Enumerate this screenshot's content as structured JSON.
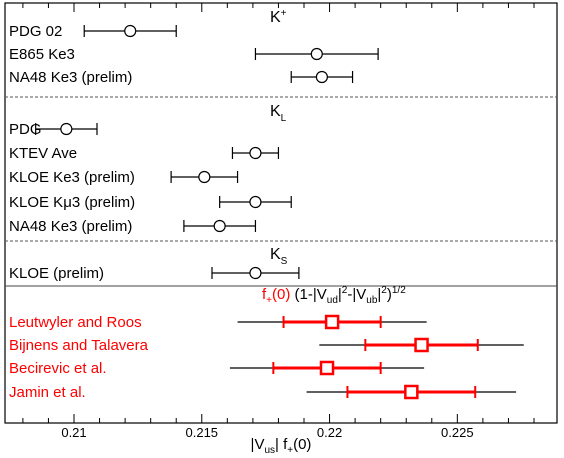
{
  "chart_data": {
    "type": "scatter",
    "xlabel": "|V_us| f_+(0)",
    "xlim": [
      0.2073,
      0.2289
    ],
    "x_ticks": [
      0.21,
      0.215,
      0.22,
      0.225
    ],
    "x_tick_labels": [
      "0.21",
      "0.215",
      "0.22",
      "0.225"
    ],
    "grid": false,
    "sections": [
      {
        "name": "K⁺",
        "label_main": "K",
        "label_sup": "+",
        "label_sub": "",
        "label_x": 0.217
      },
      {
        "name": "K_L",
        "label_main": "K",
        "label_sup": "",
        "label_sub": "L",
        "label_x": 0.217
      },
      {
        "name": "K_S",
        "label_main": "K",
        "label_sup": "",
        "label_sub": "S",
        "label_x": 0.217
      }
    ],
    "theory_header": {
      "f_part": "f",
      "f_sub": "+",
      "f_arg": "(0)",
      "rest_1": " (1-|V",
      "sub_ud": "ud",
      "rest_2": "|",
      "sup_2a": "2",
      "rest_3": "-|V",
      "sub_ub": "ub",
      "rest_4": "|",
      "sup_2b": "2",
      "rest_5": ")",
      "sup_half": "1/2",
      "x": 0.2166
    },
    "experiments": [
      {
        "label": "PDG 02",
        "section": "K⁺",
        "value": 0.2122,
        "err": 0.0018
      },
      {
        "label": "E865 Ke3",
        "section": "K⁺",
        "value": 0.2195,
        "err": 0.0024
      },
      {
        "label": "NA48 Ke3 (prelim)",
        "section": "K⁺",
        "value": 0.2197,
        "err": 0.0012
      },
      {
        "label": "PDG",
        "section": "K_L",
        "value": 0.2097,
        "err": 0.0012
      },
      {
        "label": "KTEV Ave",
        "section": "K_L",
        "value": 0.2171,
        "err": 0.0009
      },
      {
        "label": "KLOE Ke3 (prelim)",
        "section": "K_L",
        "value": 0.2151,
        "err": 0.0013
      },
      {
        "label": "KLOE Kμ3 (prelim)",
        "section": "K_L",
        "value": 0.2171,
        "err": 0.0014
      },
      {
        "label": "NA48 Ke3 (prelim)",
        "section": "K_L",
        "value": 0.2157,
        "err": 0.0014
      },
      {
        "label": "KLOE (prelim)",
        "section": "K_S",
        "value": 0.2171,
        "err": 0.0017
      }
    ],
    "theory": [
      {
        "label": "Leutwyler and Roos",
        "value": 0.2201,
        "err_inner": 0.0019,
        "err_outer": 0.0037
      },
      {
        "label": "Bijnens and Talavera",
        "value": 0.2236,
        "err_inner": 0.0022,
        "err_outer": 0.004
      },
      {
        "label": "Becirevic et al.",
        "value": 0.2199,
        "err_inner": 0.0021,
        "err_outer": 0.0038
      },
      {
        "label": "Jamin et al.",
        "value": 0.2232,
        "err_inner": 0.0025,
        "err_outer": 0.0041
      }
    ],
    "colors": {
      "experiment": "#000000",
      "theory": "#ff0000"
    }
  }
}
